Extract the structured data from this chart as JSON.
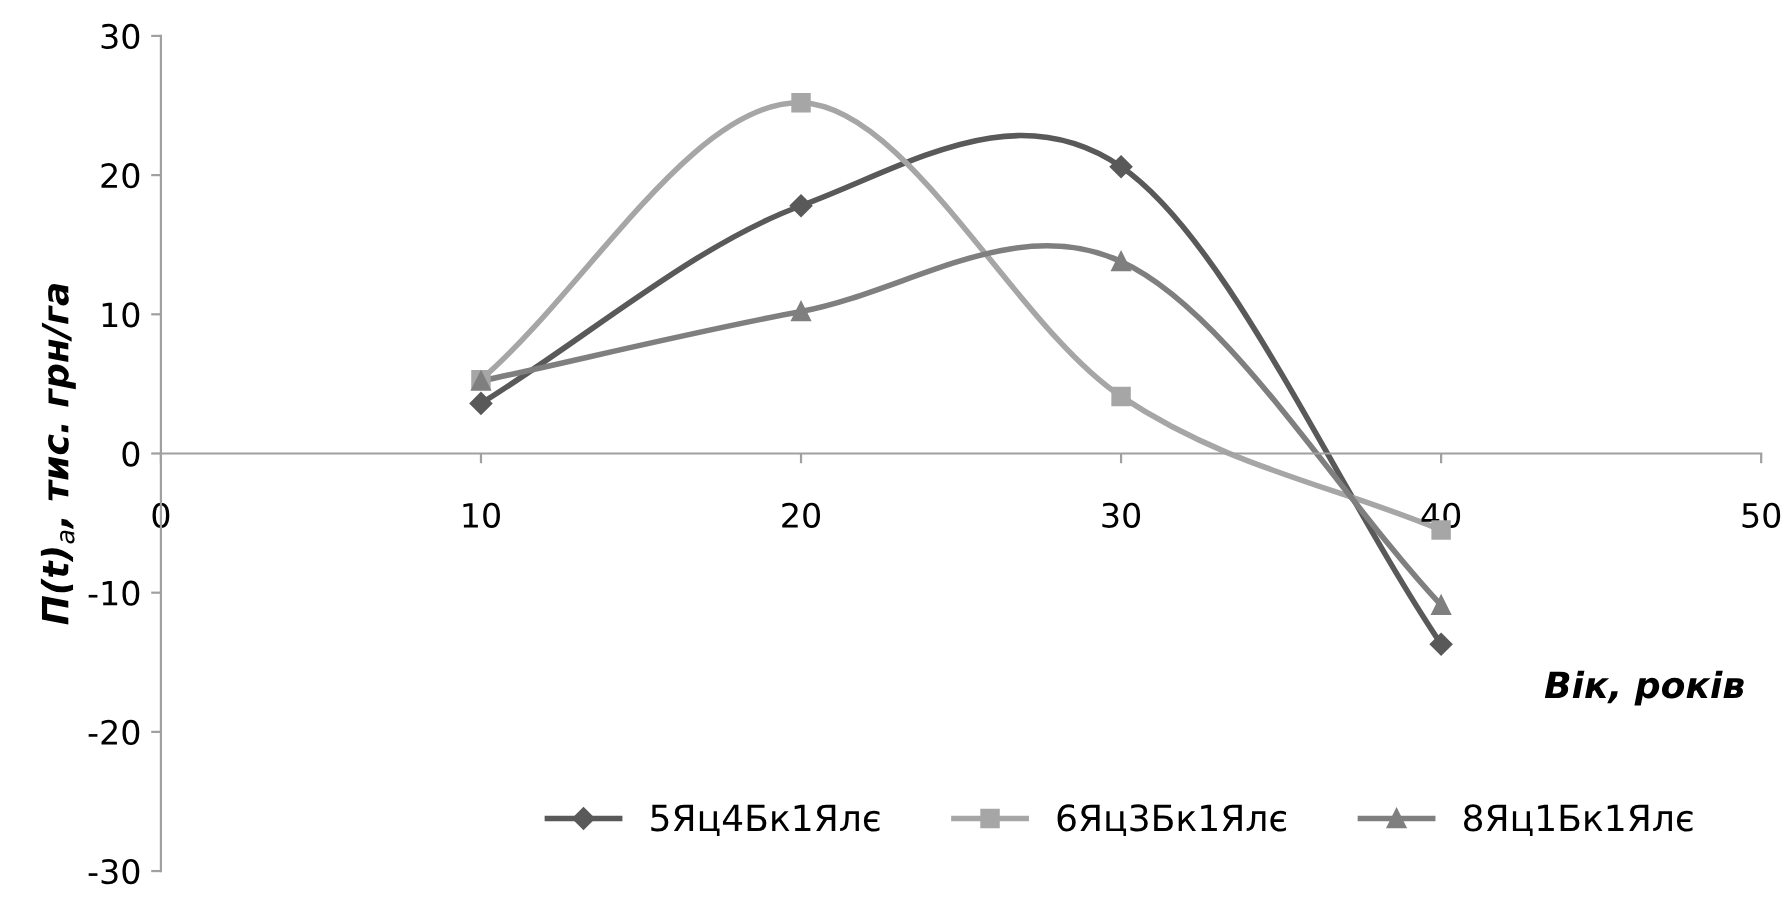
{
  "chart_data": {
    "type": "line",
    "xlabel": "Вік, років",
    "ylabel": "П(t)$_{a}$, тис. грн/га",
    "x": [
      10,
      20,
      30,
      40
    ],
    "series": [
      {
        "name": "5Яц4Бк1Ялє",
        "color": "#595959",
        "marker": "diamond",
        "values": [
          3.6,
          17.8,
          20.6,
          -13.7
        ]
      },
      {
        "name": "6Яц3Бк1Ялє",
        "color": "#a6a6a6",
        "marker": "square",
        "values": [
          5.3,
          25.2,
          4.1,
          -5.5
        ]
      },
      {
        "name": "8Яц1Бк1Ялє",
        "color": "#7f7f7f",
        "marker": "triangle",
        "values": [
          5.2,
          10.2,
          13.8,
          -10.9
        ]
      }
    ],
    "xlim": [
      0,
      50
    ],
    "xticks": [
      0,
      10,
      20,
      30,
      40,
      50
    ],
    "ylim": [
      -30,
      30
    ],
    "yticks": [
      -30,
      -20,
      -10,
      0,
      10,
      20,
      30
    ],
    "grid": false,
    "legend": "bottom",
    "line_style": "solid"
  }
}
